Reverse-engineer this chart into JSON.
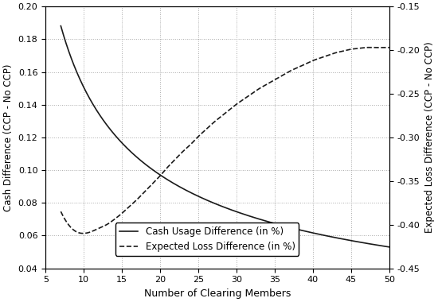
{
  "x_solid": [
    7,
    8,
    9,
    10,
    11,
    12,
    13,
    14,
    15,
    16,
    17,
    18,
    19,
    20,
    21,
    22,
    23,
    24,
    25,
    26,
    27,
    28,
    29,
    30,
    31,
    32,
    33,
    34,
    35,
    36,
    37,
    38,
    39,
    40,
    41,
    42,
    43,
    44,
    45,
    46,
    47,
    48,
    49,
    50
  ],
  "y_solid": [
    0.184,
    0.172,
    0.161,
    0.152,
    0.144,
    0.137,
    0.13,
    0.124,
    0.119,
    0.114,
    0.109,
    0.105,
    0.101,
    0.097,
    0.094,
    0.091,
    0.088,
    0.085,
    0.082,
    0.08,
    0.078,
    0.076,
    0.074,
    0.072,
    0.07,
    0.069,
    0.067,
    0.066,
    0.065,
    0.064,
    0.063,
    0.062,
    0.061,
    0.0645,
    0.063,
    0.062,
    0.061,
    0.06,
    0.059,
    0.058,
    0.057,
    0.056,
    0.055,
    0.055
  ],
  "x_dashed": [
    7,
    8,
    9,
    10,
    11,
    12,
    13,
    14,
    15,
    16,
    17,
    18,
    19,
    20,
    21,
    22,
    23,
    24,
    25,
    26,
    27,
    28,
    29,
    30,
    31,
    32,
    33,
    34,
    35,
    36,
    37,
    38,
    39,
    40,
    41,
    42,
    43,
    44,
    45,
    46,
    47,
    48,
    49,
    50
  ],
  "y_dashed_right": [
    -0.385,
    -0.4,
    -0.408,
    -0.41,
    -0.408,
    -0.404,
    -0.4,
    -0.394,
    -0.387,
    -0.379,
    -0.371,
    -0.362,
    -0.353,
    -0.344,
    -0.334,
    -0.325,
    -0.316,
    -0.308,
    -0.299,
    -0.291,
    -0.283,
    -0.276,
    -0.269,
    -0.262,
    -0.256,
    -0.25,
    -0.244,
    -0.239,
    -0.234,
    -0.229,
    -0.224,
    -0.22,
    -0.216,
    -0.212,
    -0.209,
    -0.206,
    -0.203,
    -0.201,
    -0.199,
    -0.198,
    -0.197,
    -0.197,
    -0.197,
    -0.197
  ],
  "xlim": [
    5,
    50
  ],
  "ylim_left": [
    0.04,
    0.2
  ],
  "ylim_right": [
    -0.45,
    -0.15
  ],
  "yticks_left": [
    0.04,
    0.06,
    0.08,
    0.1,
    0.12,
    0.14,
    0.16,
    0.18,
    0.2
  ],
  "yticks_right": [
    -0.45,
    -0.4,
    -0.35,
    -0.3,
    -0.25,
    -0.2,
    -0.15
  ],
  "xticks": [
    5,
    10,
    15,
    20,
    25,
    30,
    35,
    40,
    45,
    50
  ],
  "xlabel": "Number of Clearing Members",
  "ylabel_left": "Cash Difference (CCP - No CCP)",
  "ylabel_right": "Expected Loss Difference (CCP - No CCP)",
  "legend_solid": "Cash Usage Difference (in %)",
  "legend_dashed": "Expected Loss Difference (in %)",
  "line_color": "#1a1a1a",
  "background_color": "#ffffff",
  "grid_color": "#aaaaaa",
  "figsize": [
    5.5,
    3.8
  ],
  "dpi": 100
}
